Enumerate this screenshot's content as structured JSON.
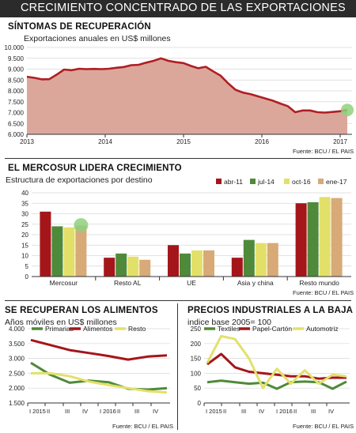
{
  "header": {
    "title": "CRECIMIENTO CONCENTRADO DE LAS EXPORTACIONES"
  },
  "chart_data": [
    {
      "type": "area",
      "section_title": "SÍNTOMAS DE RECUPERACIÓN",
      "ylabel": "Exportaciones anuales  en US$ millones",
      "source": "Fuente: BCU / EL PAIS",
      "ylim": [
        6000,
        10000
      ],
      "yticks": [
        "6.000",
        "6.500",
        "7.000",
        "7.500",
        "8.000",
        "8.500",
        "9.000",
        "9.500",
        "10.000"
      ],
      "xticks": [
        "2013",
        "2014",
        "2015",
        "2016",
        "2017"
      ],
      "fill_color": "#dba79b",
      "line_color": "#b01e23",
      "highlight_color": "#8fd17e",
      "values": [
        8650,
        8600,
        8530,
        8540,
        8750,
        8980,
        8950,
        9020,
        9000,
        9010,
        9000,
        9020,
        9060,
        9100,
        9180,
        9200,
        9300,
        9380,
        9500,
        9380,
        9320,
        9280,
        9150,
        9040,
        9110,
        8900,
        8700,
        8350,
        8050,
        7920,
        7850,
        7750,
        7650,
        7550,
        7420,
        7300,
        7020,
        7100,
        7100,
        7020,
        7000,
        7030,
        7060,
        7120
      ]
    },
    {
      "type": "bar",
      "section_title": "EL MERCOSUR LIDERA CRECIMIENTO",
      "subtitle": "Estructura de exportaciones por destino",
      "source": "Fuente: BCU / EL PAIS",
      "ylim": [
        0,
        40
      ],
      "yticks": [
        "0",
        "5",
        "10",
        "15",
        "20",
        "25",
        "30",
        "35",
        "40"
      ],
      "categories": [
        "Mercosur",
        "Resto AL",
        "UE",
        "Asia y china",
        "Resto mundo"
      ],
      "series": [
        {
          "name": "abr-11",
          "color": "#a4161a",
          "values": [
            31,
            9,
            15,
            9,
            35
          ]
        },
        {
          "name": "jul-14",
          "color": "#4f8a3a",
          "values": [
            24,
            11,
            11,
            17.5,
            35.5
          ]
        },
        {
          "name": "oct-16",
          "color": "#e3e06a",
          "values": [
            23.5,
            9.5,
            12.5,
            16,
            38
          ]
        },
        {
          "name": "ene-17",
          "color": "#d7aa78",
          "values": [
            24.5,
            8,
            12.5,
            16,
            37.5
          ]
        }
      ],
      "highlight_color": "#8fd17e"
    },
    {
      "type": "line",
      "section_title": "SE RECUPERAN LOS ALIMENTOS",
      "subtitle": "Años móviles en US$ millones",
      "source": "Fuente: BCU / EL PAIS",
      "ylim": [
        1500,
        4000
      ],
      "yticks": [
        "1.500",
        "2.000",
        "2.500",
        "3.000",
        "3.500",
        "4.000"
      ],
      "xticks": [
        "I 2015",
        "II",
        "III",
        "IV",
        "I 2016",
        "II",
        "III",
        "IV"
      ],
      "series": [
        {
          "name": "Primarias",
          "color": "#4f8a3a",
          "values": [
            2850,
            2450,
            2180,
            2250,
            2200,
            1980,
            1950,
            2000
          ]
        },
        {
          "name": "Alimentos",
          "color": "#a4161a",
          "values": [
            3620,
            3450,
            3280,
            3180,
            3080,
            2960,
            3060,
            3100
          ]
        },
        {
          "name": "Resto",
          "color": "#e3e06a",
          "values": [
            2500,
            2500,
            2400,
            2220,
            2100,
            2000,
            1900,
            1850
          ]
        }
      ]
    },
    {
      "type": "line",
      "section_title": "PRECIOS INDUSTRIALES A LA BAJA",
      "subtitle": "indice base 2005= 100",
      "source": "Fuente: BCU / EL PAIS",
      "ylim": [
        0,
        250
      ],
      "yticks": [
        "0",
        "50",
        "100",
        "150",
        "200",
        "250"
      ],
      "xticks": [
        "I 2015",
        "II",
        "III",
        "IV",
        "I 2016",
        "II",
        "III",
        "IV"
      ],
      "series": [
        {
          "name": "Textiles",
          "color": "#4f8a3a",
          "values": [
            70,
            75,
            70,
            65,
            68,
            48,
            70,
            72,
            70,
            48,
            72
          ]
        },
        {
          "name": "Papel-Cartón",
          "color": "#a4161a",
          "values": [
            130,
            165,
            120,
            105,
            100,
            95,
            90,
            90,
            82,
            85,
            85
          ]
        },
        {
          "name": "Automotriz",
          "color": "#e3e06a",
          "values": [
            135,
            225,
            215,
            150,
            50,
            115,
            65,
            110,
            65,
            95,
            90
          ]
        }
      ]
    }
  ]
}
